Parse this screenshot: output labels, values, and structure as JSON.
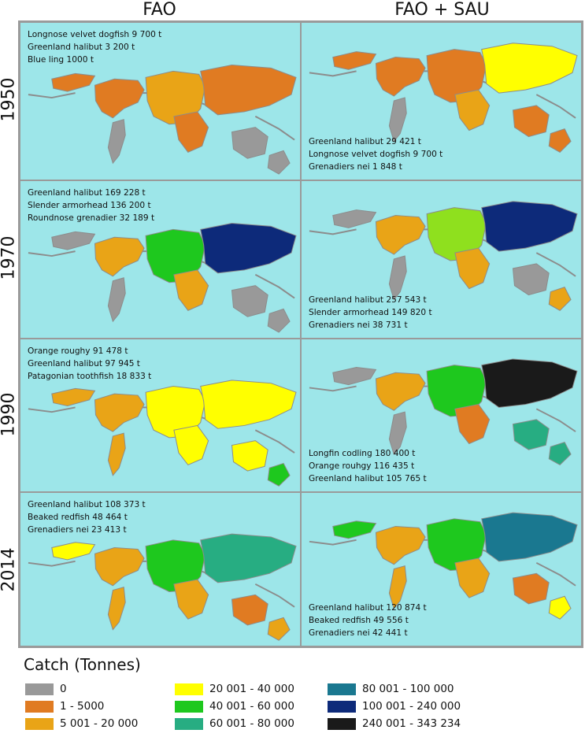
{
  "columns": [
    "FAO",
    "FAO + SAU"
  ],
  "rows": [
    "1950",
    "1970",
    "1990",
    "2014"
  ],
  "panels": [
    {
      "year": "1950",
      "source": "FAO",
      "lines": [
        "Longnose velvet dogfish 9 700 t",
        "Greenland halibut 3 200 t",
        "Blue ling 1000 t"
      ],
      "label_position": "top",
      "fills": {
        "americas": "#e07b22",
        "europe": "#e9a417",
        "asia": "#e07b22",
        "africa": "#e07b22",
        "south_america": "#999999",
        "oceania": "#999999",
        "nz": "#999999",
        "greenland": "#e07b22"
      }
    },
    {
      "year": "1950",
      "source": "FAO + SAU",
      "lines": [
        "Greenland halibut 29 421 t",
        "Longnose velvet dogfish 9 700 t",
        "Grenadiers nei 1 848 t"
      ],
      "label_position": "bottom",
      "fills": {
        "americas": "#e07b22",
        "europe": "#e07b22",
        "asia": "#ffff00",
        "africa": "#e9a417",
        "south_america": "#999999",
        "oceania": "#e07b22",
        "nz": "#e07b22",
        "greenland": "#e07b22"
      }
    },
    {
      "year": "1970",
      "source": "FAO",
      "lines": [
        "Greenland halibut 169 228 t",
        "Slender armorhead 136 200 t",
        "Roundnose grenadier 32 189 t"
      ],
      "label_position": "top",
      "fills": {
        "americas": "#e9a417",
        "europe": "#1ec81e",
        "asia": "#0d2a7a",
        "africa": "#e9a417",
        "south_america": "#999999",
        "oceania": "#999999",
        "nz": "#999999",
        "greenland": "#999999"
      }
    },
    {
      "year": "1970",
      "source": "FAO + SAU",
      "lines": [
        "Greenland halibut 257 543 t",
        "Slender armorhead 149 820 t",
        "Grenadiers nei 38 731 t"
      ],
      "label_position": "bottom",
      "fills": {
        "americas": "#e9a417",
        "europe": "#8fe01e",
        "asia": "#0d2a7a",
        "africa": "#e9a417",
        "south_america": "#999999",
        "oceania": "#999999",
        "nz": "#e9a417",
        "greenland": "#999999"
      }
    },
    {
      "year": "1990",
      "source": "FAO",
      "lines": [
        "Orange roughy 91 478 t",
        "Greenland halibut 97 945 t",
        "Patagonian toothfish 18 833 t"
      ],
      "label_position": "top",
      "fills": {
        "americas": "#e9a417",
        "europe": "#ffff00",
        "asia": "#ffff00",
        "africa": "#ffff00",
        "south_america": "#e9a417",
        "oceania": "#ffff00",
        "nz": "#1ec81e",
        "greenland": "#e9a417"
      }
    },
    {
      "year": "1990",
      "source": "FAO + SAU",
      "lines": [
        "Longfin codling 180 400 t",
        "Orange rouhgy 116 435 t",
        "Greenland halibut 105 765 t"
      ],
      "label_position": "bottom",
      "fills": {
        "americas": "#e9a417",
        "europe": "#1ec81e",
        "asia": "#1a1a1a",
        "africa": "#e07b22",
        "south_america": "#999999",
        "oceania": "#27ad82",
        "nz": "#27ad82",
        "greenland": "#999999"
      }
    },
    {
      "year": "2014",
      "source": "FAO",
      "lines": [
        "Greenland halibut 108 373 t",
        "Beaked redfish 48 464 t",
        "Grenadiers nei 23 413 t"
      ],
      "label_position": "top",
      "fills": {
        "americas": "#e9a417",
        "europe": "#1ec81e",
        "asia": "#27ad82",
        "africa": "#e9a417",
        "south_america": "#e9a417",
        "oceania": "#e07b22",
        "nz": "#e9a417",
        "greenland": "#ffff00"
      }
    },
    {
      "year": "2014",
      "source": "FAO + SAU",
      "lines": [
        "Greenland halibut 120 874 t",
        "Beaked redfish 49 556 t",
        "Grenadiers nei 42 441 t"
      ],
      "label_position": "bottom",
      "fills": {
        "americas": "#e9a417",
        "europe": "#1ec81e",
        "asia": "#1a7890",
        "africa": "#e9a417",
        "south_america": "#e9a417",
        "oceania": "#e07b22",
        "nz": "#ffff00",
        "greenland": "#1ec81e"
      }
    }
  ],
  "legend": {
    "title": "Catch (Tonnes)",
    "items": [
      {
        "label": "0",
        "color": "#999999"
      },
      {
        "label": "1 - 5000",
        "color": "#e07b22"
      },
      {
        "label": "5 001 - 20 000",
        "color": "#e9a417"
      },
      {
        "label": "20 001 - 40 000",
        "color": "#ffff00"
      },
      {
        "label": "40 001 - 60 000",
        "color": "#1ec81e"
      },
      {
        "label": "60 001 - 80 000",
        "color": "#27ad82"
      },
      {
        "label": "80 001 - 100 000",
        "color": "#1a7890"
      },
      {
        "label": "100 001 - 240 000",
        "color": "#0d2a7a"
      },
      {
        "label": "240 001 - 343 234",
        "color": "#1a1a1a"
      }
    ]
  },
  "colors": {
    "ocean": "#9de6e9",
    "border": "#9a9a9a",
    "coast": "#8c8c8c"
  }
}
